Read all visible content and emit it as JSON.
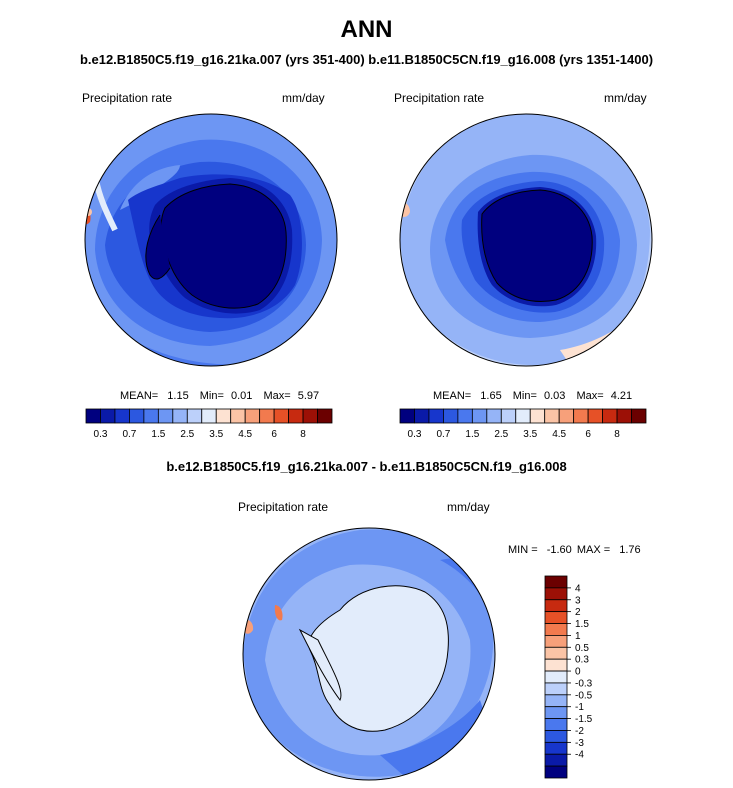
{
  "title": "ANN",
  "subtitle": "b.e12.B1850C5.f19_g16.21ka.007 (yrs 351-400) b.e11.B1850C5CN.f19_g16.008 (yrs 1351-1400)",
  "diff_title": "b.e12.B1850C5.f19_g16.21ka.007 - b.e11.B1850C5CN.f19_g16.008",
  "panels": [
    {
      "left_label": "Precipitation rate",
      "right_label": "mm/day",
      "stats": {
        "mean_label": "MEAN=",
        "mean": "1.15",
        "min_label": "Min=",
        "min": "0.01",
        "max_label": "Max=",
        "max": "5.97"
      }
    },
    {
      "left_label": "Precipitation rate",
      "right_label": "mm/day",
      "stats": {
        "mean_label": "MEAN=",
        "mean": "1.65",
        "min_label": "Min=",
        "min": "0.03",
        "max_label": "Max=",
        "max": "4.21"
      }
    },
    {
      "left_label": "Precipitation rate",
      "right_label": "mm/day",
      "stats": {
        "min_label": "MIN =",
        "min": "-1.60",
        "max_label": "MAX =",
        "max": "1.76"
      }
    }
  ],
  "colorbar_abs": {
    "colors": [
      "#00007f",
      "#0a1aa8",
      "#1736cc",
      "#2c58e0",
      "#4a78ee",
      "#6d96f3",
      "#95b4f7",
      "#bcd0fa",
      "#e2ecfb",
      "#fde2d2",
      "#fbc4a6",
      "#f7a07a",
      "#f27a4e",
      "#e65127",
      "#c72a10",
      "#9c1006",
      "#6b0000"
    ],
    "ticks": [
      "0.3",
      "0.7",
      "1.5",
      "2.5",
      "3.5",
      "4.5",
      "6",
      "8"
    ]
  },
  "colorbar_diff": {
    "colors": [
      "#00007f",
      "#0a1aa8",
      "#1736cc",
      "#2c58e0",
      "#4a78ee",
      "#6d96f3",
      "#95b4f7",
      "#bcd0fa",
      "#e2ecfb",
      "#fde2d2",
      "#fbc4a6",
      "#f7a07a",
      "#f27a4e",
      "#e65127",
      "#c72a10",
      "#9c1006",
      "#6b0000"
    ],
    "labels": [
      "4",
      "3",
      "2",
      "1.5",
      "1",
      "0.5",
      "0.3",
      "0",
      "-0.3",
      "-0.5",
      "-1",
      "-1.5",
      "-2",
      "-3",
      "-4"
    ]
  }
}
